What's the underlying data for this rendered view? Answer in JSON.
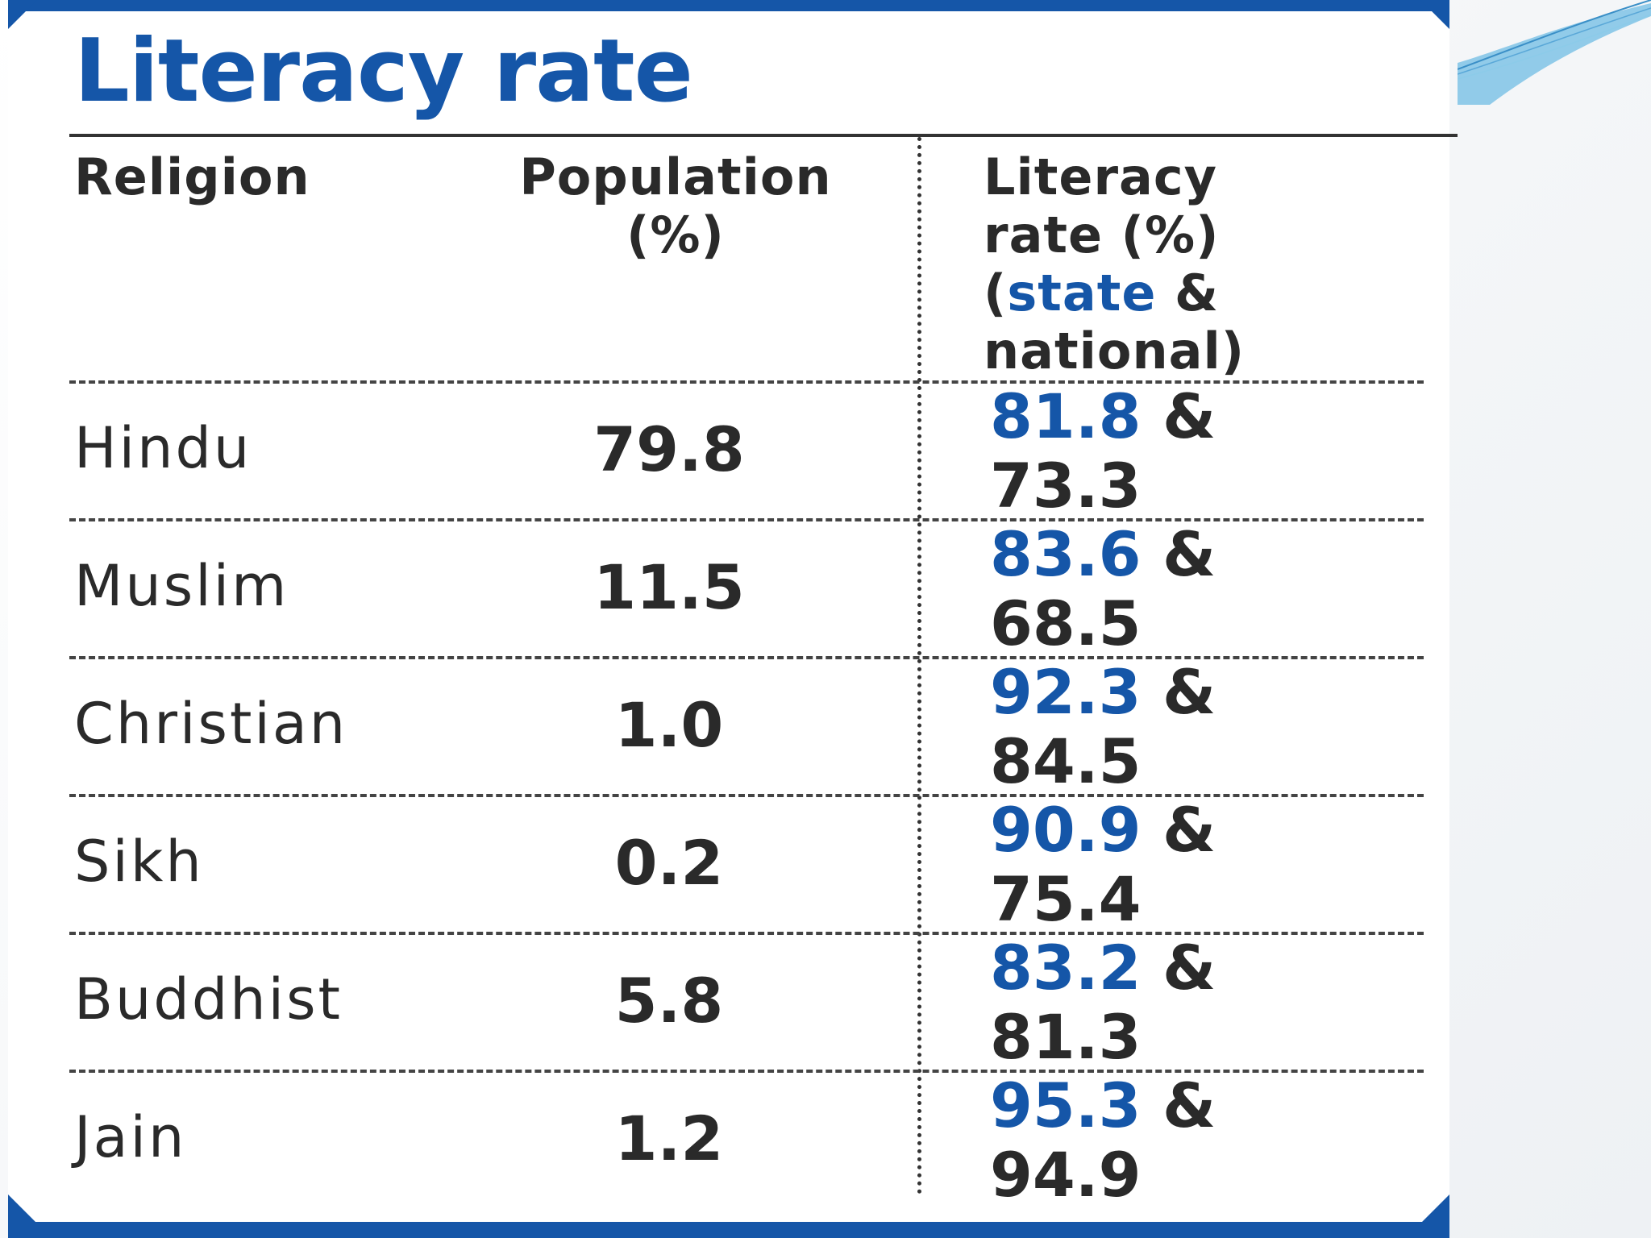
{
  "chart_data": {
    "type": "table",
    "title": "Literacy rate",
    "columns": {
      "religion": "Religion",
      "population_line1": "Population",
      "population_line2": "(%)",
      "literacy_line1": "Literacy",
      "literacy_line2": "rate (%)",
      "literacy_line3_open": "(",
      "literacy_line3_state": "state",
      "literacy_line3_amp": " &",
      "literacy_line4": "national)"
    },
    "rows": [
      {
        "religion": "Hindu",
        "population": "79.8",
        "state": "81.8",
        "amp": " &",
        "national": "73.3"
      },
      {
        "religion": "Muslim",
        "population": "11.5",
        "state": "83.6",
        "amp": " &",
        "national": "68.5"
      },
      {
        "religion": "Christian",
        "population": "1.0",
        "state": "92.3",
        "amp": " &",
        "national": "84.5"
      },
      {
        "religion": "Sikh",
        "population": "0.2",
        "state": "90.9",
        "amp": " &",
        "national": "75.4"
      },
      {
        "religion": "Buddhist",
        "population": "5.8",
        "state": "83.2",
        "amp": " &",
        "national": "81.3"
      },
      {
        "religion": "Jain",
        "population": "1.2",
        "state": "95.3",
        "amp": " &",
        "national": "94.9"
      }
    ],
    "colors": {
      "accent": "#1556a8",
      "text": "#2a2a2a"
    }
  }
}
